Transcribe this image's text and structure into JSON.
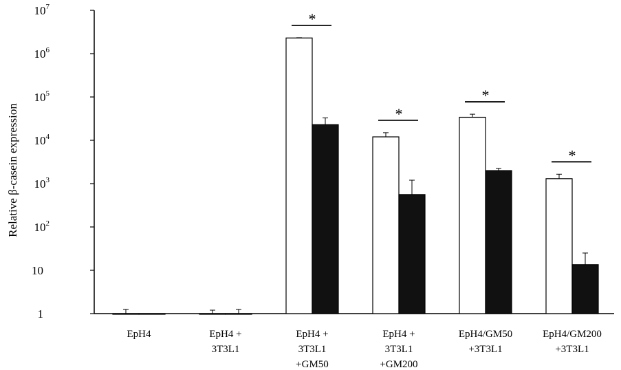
{
  "chart_data": {
    "type": "bar",
    "ylabel": "Relative β-casein expression",
    "yscale": "log",
    "ylim": [
      1,
      10000000
    ],
    "ytick_labels": [
      {
        "base": "1",
        "exp": ""
      },
      {
        "base": "10",
        "exp": ""
      },
      {
        "base": "10",
        "exp": "2"
      },
      {
        "base": "10",
        "exp": "3"
      },
      {
        "base": "10",
        "exp": "4"
      },
      {
        "base": "10",
        "exp": "5"
      },
      {
        "base": "10",
        "exp": "6"
      },
      {
        "base": "10",
        "exp": "7"
      }
    ],
    "ytick_values": [
      1,
      10,
      100,
      1000,
      10000,
      100000,
      1000000,
      10000000
    ],
    "categories": [
      [
        "EpH4"
      ],
      [
        "EpH4 +",
        "3T3L1"
      ],
      [
        "EpH4 +",
        "3T3L1",
        "+GM50"
      ],
      [
        "EpH4 +",
        "3T3L1",
        "+GM200"
      ],
      [
        "EpH4/GM50",
        "+3T3L1"
      ],
      [
        "EpH4/GM200",
        "+3T3L1"
      ]
    ],
    "series": [
      {
        "color": "#ffffff",
        "values": [
          1,
          1,
          2300000,
          12000,
          34000,
          1300
        ],
        "error_upper": [
          1.25,
          1.2,
          2330000,
          15000,
          40000,
          1650
        ]
      },
      {
        "color": "#111111",
        "values": [
          0.9,
          1,
          23000,
          560,
          2000,
          13.5
        ],
        "error_upper": [
          0.9,
          1.25,
          33000,
          1200,
          2250,
          25
        ]
      }
    ],
    "significance": [
      {
        "category": 2,
        "label": "*"
      },
      {
        "category": 3,
        "label": "*"
      },
      {
        "category": 4,
        "label": "*"
      },
      {
        "category": 5,
        "label": "*"
      }
    ],
    "grid": false,
    "legend": "none"
  }
}
